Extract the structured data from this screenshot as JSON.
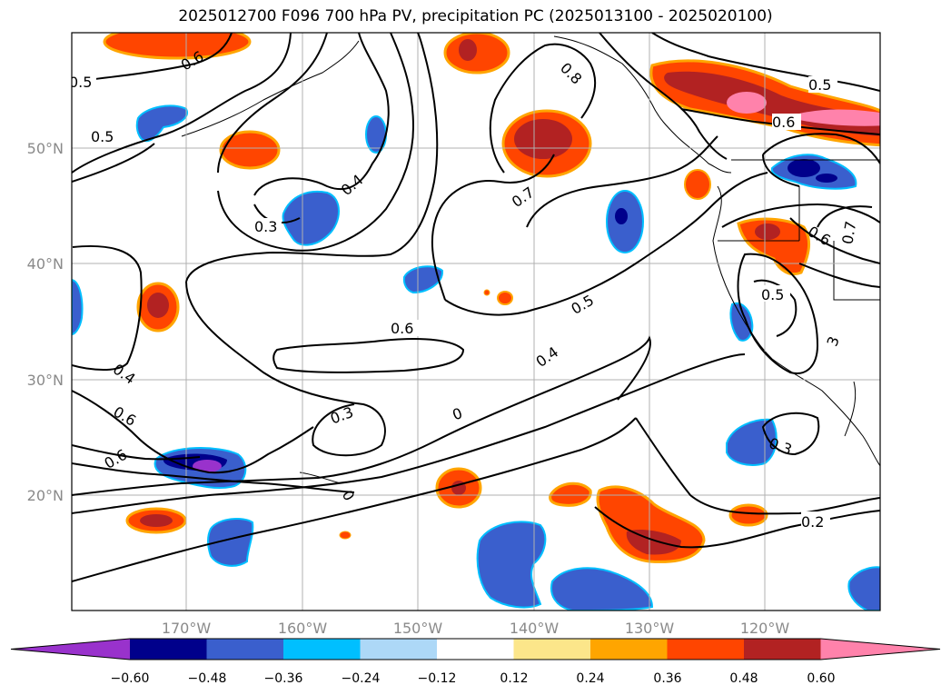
{
  "title": "2025012700 F096 700 hPa PV, precipitation PC (2025013100 - 2025020100)",
  "lon_labels": [
    "170°W",
    "160°W",
    "150°W",
    "140°W",
    "130°W",
    "120°W"
  ],
  "lat_labels": [
    "50°N",
    "40°N",
    "30°N",
    "20°N"
  ],
  "contour_labels": [
    "0.5",
    "0.5",
    "0.6",
    "0.8",
    "0.5",
    "0.6",
    "0.3",
    "0.4",
    "0.7",
    "0.6",
    "0.7",
    "0.5",
    "0.6",
    "0.4",
    "0.4",
    "0.5",
    "0.6",
    "0.3",
    "0",
    "0.6",
    "0.3",
    "0.2",
    "3"
  ],
  "colorbar": {
    "ticks": [
      "−0.60",
      "−0.48",
      "−0.36",
      "−0.24",
      "−0.12",
      "0.12",
      "0.24",
      "0.36",
      "0.48",
      "0.60"
    ],
    "colors": [
      "#9932cc",
      "#00008b",
      "#3a5fcd",
      "#00bfff",
      "#add8f7",
      "#ffffff",
      "#fce68a",
      "#ffa500",
      "#ff4500",
      "#b22222",
      "#ff82ab"
    ]
  }
}
